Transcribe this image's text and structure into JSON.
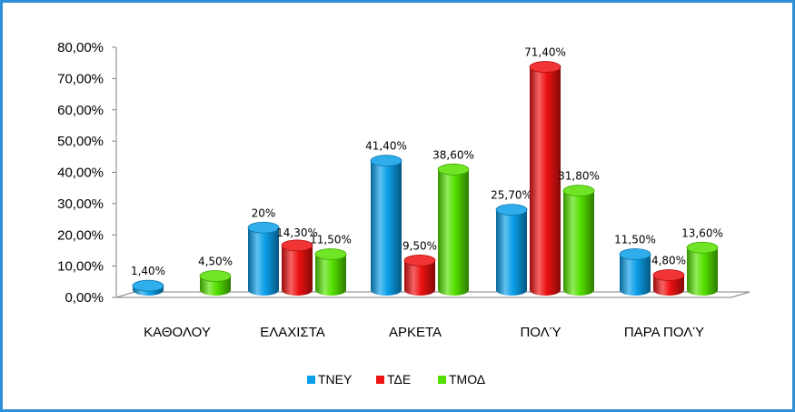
{
  "chart_data": {
    "type": "bar",
    "title": "",
    "xlabel": "",
    "ylabel": "",
    "ylim": [
      0,
      80
    ],
    "yticks": [
      "0,00%",
      "10,00%",
      "20,00%",
      "30,00%",
      "40,00%",
      "50,00%",
      "60,00%",
      "70,00%",
      "80,00%"
    ],
    "categories": [
      "ΚΑΘΟΛΟΥ",
      "ΕΛΑΧΙΣΤΑ",
      "ΑΡΚΕΤΑ",
      "ΠΟΛΎ",
      "ΠΑΡΑ ΠΟΛΎ"
    ],
    "series": [
      {
        "name": "ΤΝΕΥ",
        "color": "#0b9ee8",
        "values": [
          1.4,
          20,
          41.4,
          25.7,
          11.5
        ],
        "labels": [
          "1,40%",
          "20%",
          "41,40%",
          "25,70%",
          "11,50%"
        ]
      },
      {
        "name": "ΤΔΕ",
        "color": "#ee1111",
        "values": [
          0,
          14.3,
          9.5,
          71.4,
          4.8
        ],
        "labels": [
          "",
          "14,30%",
          "9,50%",
          "71,40%",
          "4,80%"
        ]
      },
      {
        "name": "ΤΜΟΔ",
        "color": "#55e000",
        "values": [
          4.5,
          11.5,
          38.6,
          31.8,
          13.6
        ],
        "labels": [
          "4,50%",
          "11,50%",
          "38,60%",
          "31,80%",
          "13,60%"
        ]
      }
    ],
    "legend": "bottom",
    "grid": false,
    "style": "3d-cylinder"
  }
}
